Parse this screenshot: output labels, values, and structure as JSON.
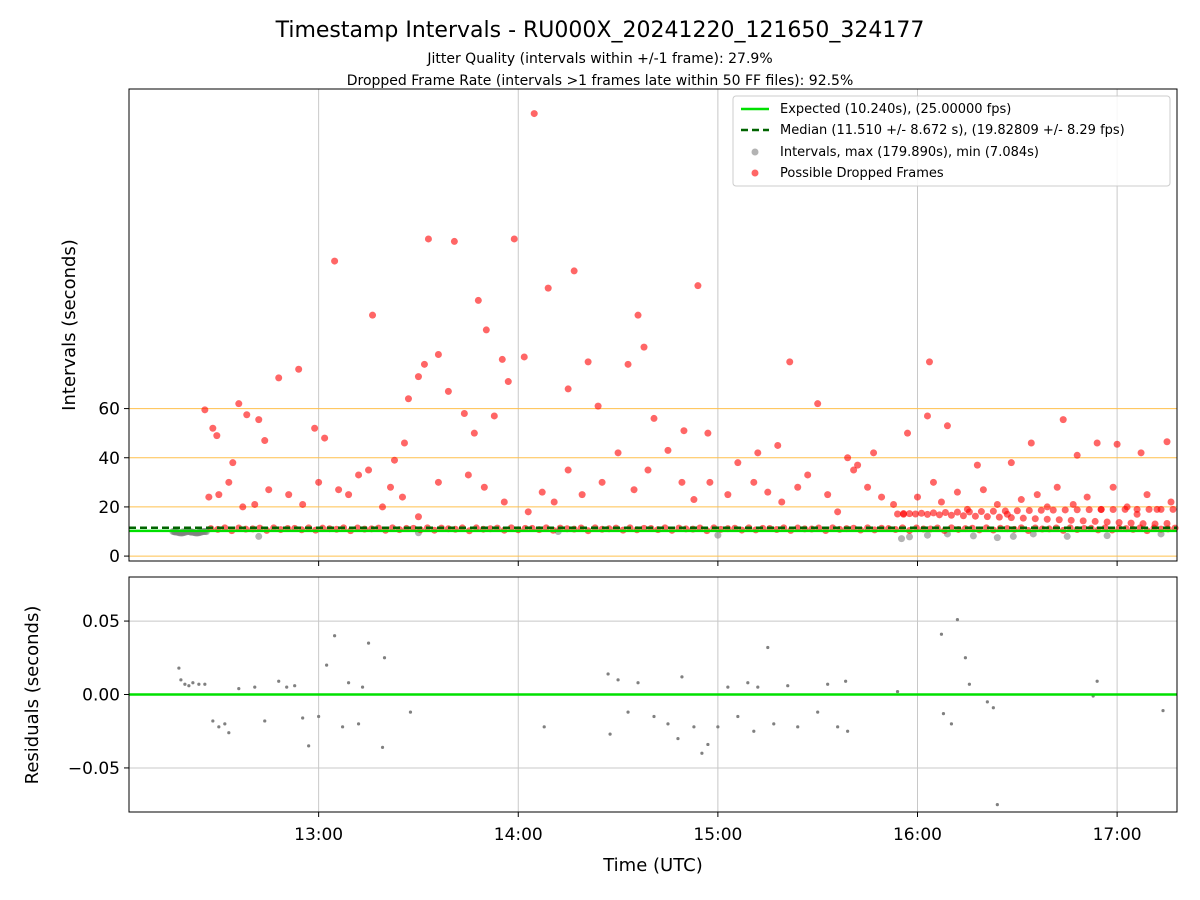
{
  "chart_data": {
    "type": "scatter",
    "title": "Timestamp Intervals - RU000X_20241220_121650_324177",
    "subtitle_lines": [
      "Jitter Quality (intervals within +/-1 frame): 27.9%",
      "Dropped Frame Rate (intervals >1 frames late within 50 FF files): 92.5%"
    ],
    "xlabel": "Time (UTC)",
    "x_tick_labels": [
      "13:00",
      "14:00",
      "15:00",
      "16:00",
      "17:00"
    ],
    "x_ticks_hours": [
      13,
      14,
      15,
      16,
      17
    ],
    "xlim_hours": [
      12.05,
      17.3
    ],
    "grid": true,
    "legend_position": "top-right",
    "colors": {
      "expected": "#00e000",
      "median": "#006400",
      "intervals": "#808080",
      "dropped": "#ff0000",
      "reference_lines": "#ffc04d",
      "grid": "#c8c8c8"
    },
    "top_panel": {
      "ylabel": "Intervals (seconds)",
      "ylim": [
        -2,
        190
      ],
      "y_tick_labels": [
        "0",
        "20",
        "40",
        "60"
      ],
      "y_ticks": [
        0,
        20,
        40,
        60
      ],
      "reference_lines": [
        0,
        20,
        40,
        60
      ],
      "expected_value": 10.24,
      "median_value": 11.51,
      "legend": [
        "Expected (10.240s), (25.00000 fps)",
        "Median (11.510 +/- 8.672 s), (19.82809 +/- 8.29 fps)",
        "Intervals, max (179.890s), min (7.084s)",
        "Possible Dropped Frames"
      ],
      "dropped_points": [
        [
          12.43,
          59.5
        ],
        [
          12.47,
          52
        ],
        [
          12.49,
          49
        ],
        [
          12.57,
          38
        ],
        [
          12.6,
          62
        ],
        [
          12.64,
          57.5
        ],
        [
          12.7,
          55.5
        ],
        [
          12.73,
          47
        ],
        [
          12.8,
          72.5
        ],
        [
          12.9,
          76
        ],
        [
          12.98,
          52
        ],
        [
          13.03,
          48
        ],
        [
          13.08,
          120
        ],
        [
          13.2,
          33
        ],
        [
          13.27,
          98
        ],
        [
          13.38,
          39
        ],
        [
          13.43,
          46
        ],
        [
          13.45,
          64
        ],
        [
          13.5,
          73
        ],
        [
          13.53,
          78
        ],
        [
          13.55,
          129
        ],
        [
          13.6,
          82
        ],
        [
          13.65,
          67
        ],
        [
          13.68,
          128
        ],
        [
          13.73,
          58
        ],
        [
          13.78,
          50
        ],
        [
          13.8,
          104
        ],
        [
          13.84,
          92
        ],
        [
          13.88,
          57
        ],
        [
          13.92,
          80
        ],
        [
          13.95,
          71
        ],
        [
          13.98,
          129
        ],
        [
          14.03,
          81
        ],
        [
          14.08,
          180
        ],
        [
          14.15,
          109
        ],
        [
          14.25,
          68
        ],
        [
          14.28,
          116
        ],
        [
          14.35,
          79
        ],
        [
          14.4,
          61
        ],
        [
          14.55,
          78
        ],
        [
          14.6,
          98
        ],
        [
          14.63,
          85
        ],
        [
          14.68,
          56
        ],
        [
          14.83,
          51
        ],
        [
          14.9,
          110
        ],
        [
          14.95,
          50
        ],
        [
          15.2,
          42
        ],
        [
          15.3,
          45
        ],
        [
          15.36,
          79
        ],
        [
          15.5,
          62
        ],
        [
          15.65,
          40
        ],
        [
          15.7,
          37
        ],
        [
          15.78,
          42
        ],
        [
          15.95,
          50
        ],
        [
          16.05,
          57
        ],
        [
          16.06,
          79
        ],
        [
          16.15,
          53
        ],
        [
          16.3,
          37
        ],
        [
          16.47,
          38
        ],
        [
          16.57,
          46
        ],
        [
          16.73,
          55.5
        ],
        [
          16.8,
          41
        ],
        [
          16.9,
          46
        ],
        [
          17.0,
          45.5
        ],
        [
          17.12,
          42
        ],
        [
          17.25,
          46.5
        ],
        [
          12.45,
          24
        ],
        [
          12.5,
          25
        ],
        [
          12.55,
          30
        ],
        [
          12.62,
          20
        ],
        [
          12.68,
          21
        ],
        [
          12.75,
          27
        ],
        [
          12.85,
          25
        ],
        [
          12.92,
          21
        ],
        [
          13.0,
          30
        ],
        [
          13.1,
          27
        ],
        [
          13.15,
          25
        ],
        [
          13.25,
          35
        ],
        [
          13.32,
          20
        ],
        [
          13.36,
          28
        ],
        [
          13.42,
          24
        ],
        [
          13.5,
          16
        ],
        [
          13.6,
          30
        ],
        [
          13.75,
          33
        ],
        [
          13.83,
          28
        ],
        [
          13.93,
          22
        ],
        [
          14.05,
          18
        ],
        [
          14.12,
          26
        ],
        [
          14.18,
          22
        ],
        [
          14.25,
          35
        ],
        [
          14.32,
          25
        ],
        [
          14.42,
          30
        ],
        [
          14.5,
          42
        ],
        [
          14.58,
          27
        ],
        [
          14.65,
          35
        ],
        [
          14.75,
          43
        ],
        [
          14.82,
          30
        ],
        [
          14.88,
          23
        ],
        [
          14.96,
          30
        ],
        [
          15.05,
          25
        ],
        [
          15.1,
          38
        ],
        [
          15.18,
          30
        ],
        [
          15.25,
          26
        ],
        [
          15.32,
          22
        ],
        [
          15.4,
          28
        ],
        [
          15.45,
          33
        ],
        [
          15.55,
          25
        ],
        [
          15.6,
          18
        ],
        [
          15.68,
          35
        ],
        [
          15.75,
          28
        ],
        [
          15.82,
          24
        ],
        [
          15.88,
          21
        ],
        [
          15.93,
          17
        ],
        [
          16.0,
          24
        ],
        [
          16.08,
          30
        ],
        [
          16.12,
          22
        ],
        [
          16.2,
          26
        ],
        [
          16.25,
          19
        ],
        [
          16.33,
          27
        ],
        [
          16.4,
          21
        ],
        [
          16.45,
          17
        ],
        [
          16.52,
          23
        ],
        [
          16.6,
          25
        ],
        [
          16.65,
          20
        ],
        [
          16.7,
          28
        ],
        [
          16.78,
          21
        ],
        [
          16.85,
          24
        ],
        [
          16.92,
          19
        ],
        [
          16.98,
          28
        ],
        [
          17.05,
          20
        ],
        [
          17.1,
          17
        ],
        [
          17.15,
          25
        ],
        [
          17.2,
          19
        ],
        [
          17.27,
          22
        ]
      ],
      "interval_points": [
        [
          12.28,
          9.8
        ],
        [
          12.32,
          9.9
        ],
        [
          12.36,
          9.7
        ],
        [
          12.4,
          9.8
        ],
        [
          12.7,
          8.0
        ],
        [
          13.5,
          9.5
        ],
        [
          14.2,
          10.0
        ],
        [
          15.0,
          8.5
        ],
        [
          15.92,
          7.1
        ],
        [
          15.96,
          7.8
        ],
        [
          16.05,
          8.5
        ],
        [
          16.15,
          9.0
        ],
        [
          16.28,
          8.2
        ],
        [
          16.4,
          7.5
        ],
        [
          16.48,
          8.0
        ],
        [
          16.58,
          9.0
        ],
        [
          16.75,
          8.0
        ],
        [
          16.95,
          8.3
        ],
        [
          17.22,
          9.0
        ]
      ]
    },
    "bottom_panel": {
      "ylabel": "Residuals (seconds)",
      "ylim": [
        -0.08,
        0.08
      ],
      "y_tick_labels": [
        "0.05",
        "0.00",
        "−0.05"
      ],
      "y_ticks": [
        0.05,
        0,
        -0.05
      ],
      "zero_line": 0,
      "points": [
        [
          12.3,
          0.018
        ],
        [
          12.31,
          0.01
        ],
        [
          12.33,
          0.007
        ],
        [
          12.35,
          0.006
        ],
        [
          12.37,
          0.008
        ],
        [
          12.4,
          0.007
        ],
        [
          12.43,
          0.007
        ],
        [
          12.47,
          -0.018
        ],
        [
          12.5,
          -0.022
        ],
        [
          12.53,
          -0.02
        ],
        [
          12.55,
          -0.026
        ],
        [
          12.6,
          0.004
        ],
        [
          12.68,
          0.005
        ],
        [
          12.73,
          -0.018
        ],
        [
          12.8,
          0.009
        ],
        [
          12.84,
          0.005
        ],
        [
          12.88,
          0.006
        ],
        [
          12.92,
          -0.016
        ],
        [
          12.95,
          -0.035
        ],
        [
          13.0,
          -0.015
        ],
        [
          13.04,
          0.02
        ],
        [
          13.08,
          0.04
        ],
        [
          13.12,
          -0.022
        ],
        [
          13.15,
          0.008
        ],
        [
          13.2,
          -0.02
        ],
        [
          13.22,
          0.005
        ],
        [
          13.25,
          0.035
        ],
        [
          13.32,
          -0.036
        ],
        [
          13.33,
          0.025
        ],
        [
          13.46,
          -0.012
        ],
        [
          14.13,
          -0.022
        ],
        [
          14.45,
          0.014
        ],
        [
          14.46,
          -0.027
        ],
        [
          14.5,
          0.01
        ],
        [
          14.55,
          -0.012
        ],
        [
          14.6,
          0.008
        ],
        [
          14.68,
          -0.015
        ],
        [
          14.75,
          -0.02
        ],
        [
          14.8,
          -0.03
        ],
        [
          14.82,
          0.012
        ],
        [
          14.88,
          -0.022
        ],
        [
          14.92,
          -0.04
        ],
        [
          14.95,
          -0.034
        ],
        [
          15.0,
          -0.022
        ],
        [
          15.05,
          0.005
        ],
        [
          15.1,
          -0.015
        ],
        [
          15.15,
          0.008
        ],
        [
          15.18,
          -0.025
        ],
        [
          15.2,
          0.005
        ],
        [
          15.25,
          0.032
        ],
        [
          15.28,
          -0.02
        ],
        [
          15.35,
          0.006
        ],
        [
          15.4,
          -0.022
        ],
        [
          15.5,
          -0.012
        ],
        [
          15.55,
          0.007
        ],
        [
          15.6,
          -0.022
        ],
        [
          15.64,
          0.009
        ],
        [
          15.65,
          -0.025
        ],
        [
          15.9,
          0.002
        ],
        [
          16.12,
          0.041
        ],
        [
          16.13,
          -0.013
        ],
        [
          16.17,
          -0.02
        ],
        [
          16.2,
          0.051
        ],
        [
          16.24,
          0.025
        ],
        [
          16.26,
          0.007
        ],
        [
          16.35,
          -0.005
        ],
        [
          16.38,
          -0.009
        ],
        [
          16.4,
          -0.075
        ],
        [
          16.9,
          0.009
        ],
        [
          16.88,
          -0.001
        ],
        [
          17.23,
          -0.011
        ]
      ]
    }
  }
}
